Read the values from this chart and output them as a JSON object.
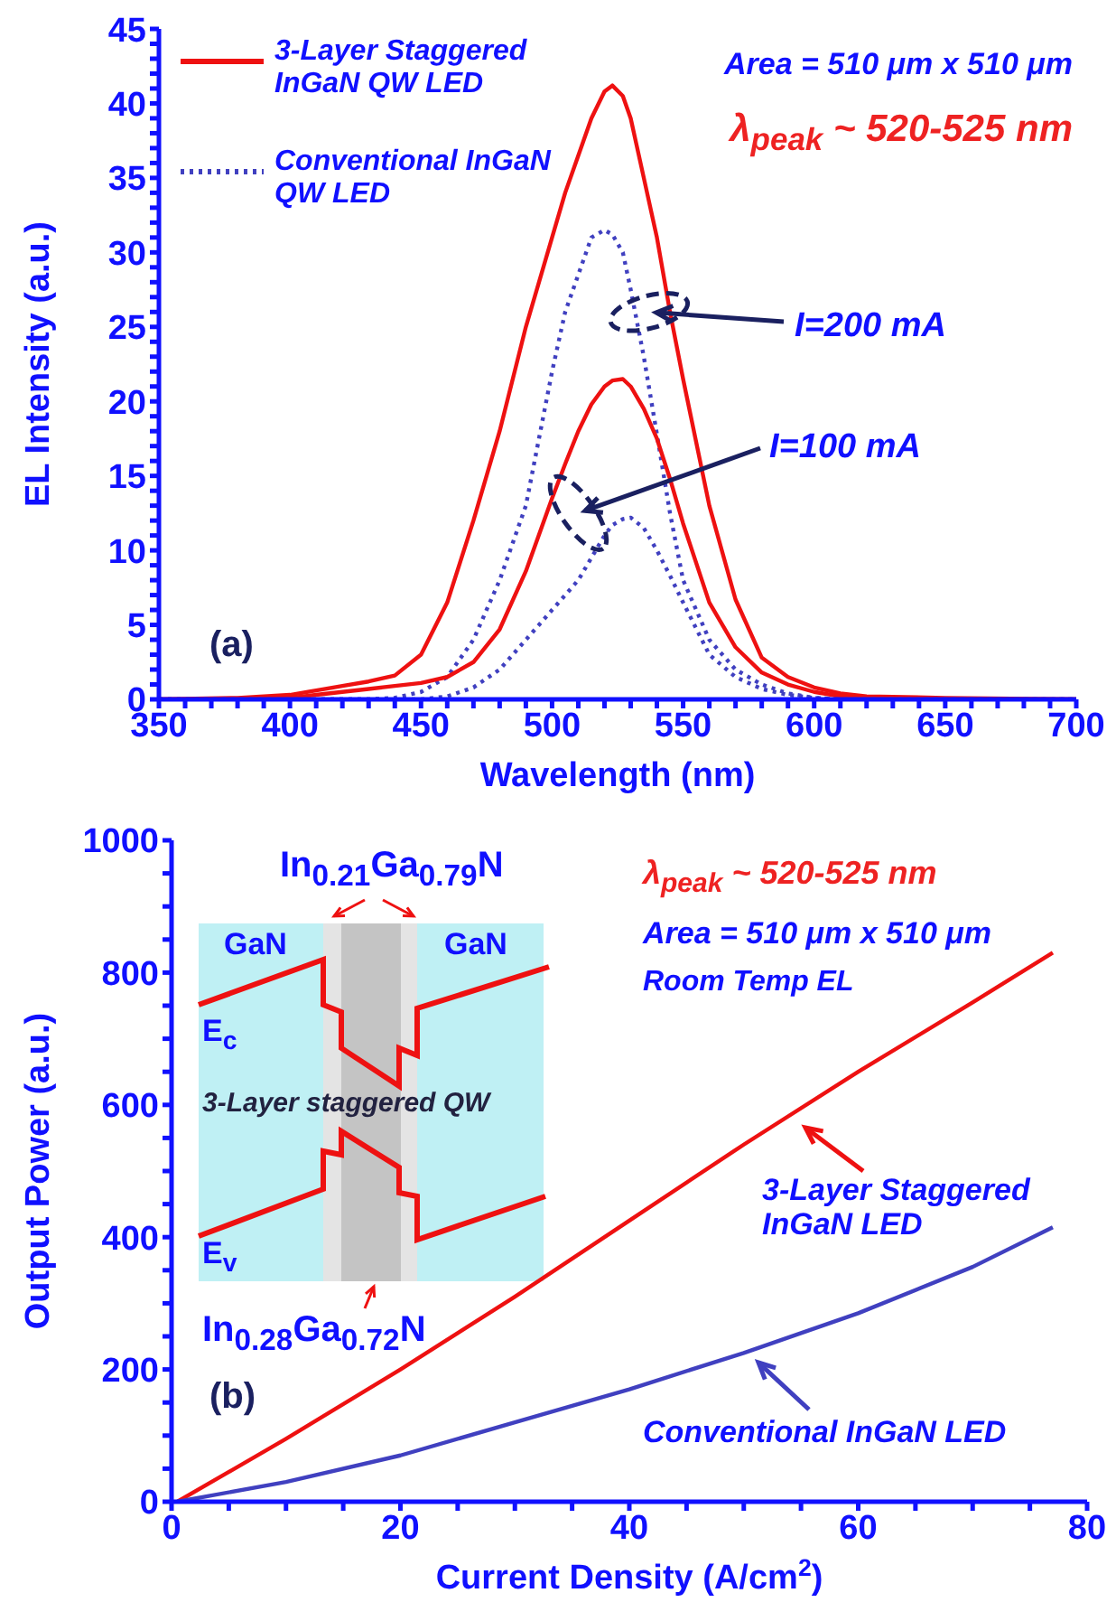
{
  "chart_data": [
    {
      "type": "line",
      "xlabel": "Wavelength (nm)",
      "ylabel": "EL Intensity (a.u.)",
      "xlim": [
        350,
        700
      ],
      "ylim": [
        0,
        45
      ],
      "xticks": [
        350,
        {
          "value": 360,
          "label": null
        },
        {
          "value": 370,
          "label": null
        },
        {
          "value": 380,
          "label": null
        },
        {
          "value": 390,
          "label": null
        },
        400,
        {
          "value": 410,
          "label": null
        },
        {
          "value": 420,
          "label": null
        },
        {
          "value": 430,
          "label": null
        },
        {
          "value": 440,
          "label": null
        },
        450,
        {
          "value": 460,
          "label": null
        },
        {
          "value": 470,
          "label": null
        },
        {
          "value": 480,
          "label": null
        },
        {
          "value": 490,
          "label": null
        },
        500,
        {
          "value": 510,
          "label": null
        },
        {
          "value": 520,
          "label": null
        },
        {
          "value": 530,
          "label": null
        },
        {
          "value": 540,
          "label": null
        },
        550,
        {
          "value": 560,
          "label": null
        },
        {
          "value": 570,
          "label": null
        },
        {
          "value": 580,
          "label": null
        },
        {
          "value": 590,
          "label": null
        },
        600,
        {
          "value": 610,
          "label": null
        },
        {
          "value": 620,
          "label": null
        },
        {
          "value": 630,
          "label": null
        },
        {
          "value": 640,
          "label": null
        },
        650,
        {
          "value": 660,
          "label": null
        },
        {
          "value": 670,
          "label": null
        },
        {
          "value": 680,
          "label": null
        },
        {
          "value": 690,
          "label": null
        },
        700
      ],
      "yticks": [
        0,
        {
          "value": 1,
          "label": null
        },
        {
          "value": 2,
          "label": null
        },
        {
          "value": 3,
          "label": null
        },
        {
          "value": 4,
          "label": null
        },
        5,
        {
          "value": 6,
          "label": null
        },
        {
          "value": 7,
          "label": null
        },
        {
          "value": 8,
          "label": null
        },
        {
          "value": 9,
          "label": null
        },
        10,
        {
          "value": 11,
          "label": null
        },
        {
          "value": 12,
          "label": null
        },
        {
          "value": 13,
          "label": null
        },
        {
          "value": 14,
          "label": null
        },
        15,
        {
          "value": 16,
          "label": null
        },
        {
          "value": 17,
          "label": null
        },
        {
          "value": 18,
          "label": null
        },
        {
          "value": 19,
          "label": null
        },
        20,
        {
          "value": 21,
          "label": null
        },
        {
          "value": 22,
          "label": null
        },
        {
          "value": 23,
          "label": null
        },
        {
          "value": 24,
          "label": null
        },
        25,
        {
          "value": 26,
          "label": null
        },
        {
          "value": 27,
          "label": null
        },
        {
          "value": 28,
          "label": null
        },
        {
          "value": 29,
          "label": null
        },
        30,
        {
          "value": 31,
          "label": null
        },
        {
          "value": 32,
          "label": null
        },
        {
          "value": 33,
          "label": null
        },
        {
          "value": 34,
          "label": null
        },
        35,
        {
          "value": 36,
          "label": null
        },
        {
          "value": 37,
          "label": null
        },
        {
          "value": 38,
          "label": null
        },
        {
          "value": 39,
          "label": null
        },
        40,
        {
          "value": 41,
          "label": null
        },
        {
          "value": 42,
          "label": null
        },
        {
          "value": 43,
          "label": null
        },
        {
          "value": 44,
          "label": null
        },
        45
      ],
      "x": [
        350,
        380,
        400,
        410,
        420,
        430,
        440,
        450,
        460,
        470,
        480,
        490,
        500,
        505,
        510,
        515,
        520,
        523,
        527,
        530,
        535,
        540,
        545,
        550,
        560,
        570,
        580,
        590,
        600,
        610,
        620,
        650,
        700
      ],
      "series": [
        {
          "name": "3-Layer Staggered InGaN QW LED",
          "color": "#ee1111",
          "line_style": "solid",
          "values": [
            0,
            0.1,
            0.3,
            0.6,
            0.9,
            1.2,
            1.6,
            3,
            6.5,
            12,
            18,
            25,
            31,
            34,
            36.5,
            39,
            40.8,
            41.2,
            40.5,
            39,
            35,
            31,
            26,
            21.5,
            13,
            6.7,
            2.8,
            1.5,
            0.8,
            0.4,
            0.2,
            0.1,
            0
          ]
        },
        {
          "name": "Conventional InGaN QW LED",
          "color": "#4040c0",
          "line_style": "dotted",
          "values": [
            0,
            0,
            0,
            0,
            0,
            0,
            0.1,
            0.5,
            1.5,
            4,
            8,
            13,
            22,
            26,
            28.5,
            31,
            31.5,
            31.2,
            30,
            27.5,
            23,
            17.8,
            12.5,
            8,
            4,
            2,
            1,
            0.4,
            0.1,
            0,
            0,
            0,
            0
          ]
        },
        {
          "color": "#ee1111",
          "line_style": "solid",
          "values": [
            0,
            0,
            0.1,
            0.3,
            0.5,
            0.7,
            0.9,
            1.1,
            1.5,
            2.5,
            4.7,
            8.6,
            13.5,
            15.8,
            18,
            19.8,
            21,
            21.4,
            21.5,
            21,
            19.5,
            17.5,
            14.8,
            11.8,
            6.5,
            3.5,
            1.8,
            1,
            0.5,
            0.2,
            0.1,
            0,
            0
          ]
        },
        {
          "color": "#4040c0",
          "line_style": "dotted",
          "values": [
            0,
            0,
            0,
            0,
            0,
            0,
            0,
            0,
            0.2,
            0.8,
            2,
            4,
            6,
            7,
            8,
            9.5,
            11,
            11.7,
            12.1,
            12.2,
            11.5,
            10,
            8.3,
            6.5,
            3,
            1.5,
            0.7,
            0.3,
            0.1,
            0,
            0,
            0,
            0
          ]
        }
      ],
      "legend": "top left",
      "marker": "none",
      "annotations": [
        "Area = 510 μm x 510 μm",
        "λ$_{peak}$ ~ 520-525 nm",
        {
          "text": "I=200 mA",
          "x": 537,
          "y": 26
        },
        {
          "text": "I=100 mA",
          "x": 510,
          "y": 12.5
        },
        "(a)"
      ]
    },
    {
      "type": "line",
      "xlabel": "Current Density (A/cm$^{2}$)",
      "ylabel": "Output Power (a.u.)",
      "xlim": [
        0,
        80
      ],
      "ylim": [
        0,
        1000
      ],
      "xticks": [
        0,
        {
          "value": 5,
          "label": null
        },
        {
          "value": 10,
          "label": null
        },
        {
          "value": 15,
          "label": null
        },
        20,
        {
          "value": 25,
          "label": null
        },
        {
          "value": 30,
          "label": null
        },
        {
          "value": 35,
          "label": null
        },
        40,
        {
          "value": 45,
          "label": null
        },
        {
          "value": 50,
          "label": null
        },
        {
          "value": 55,
          "label": null
        },
        60,
        {
          "value": 65,
          "label": null
        },
        {
          "value": 70,
          "label": null
        },
        {
          "value": 75,
          "label": null
        },
        80
      ],
      "yticks": [
        0,
        {
          "value": 50,
          "label": null
        },
        {
          "value": 100,
          "label": null
        },
        {
          "value": 150,
          "label": null
        },
        200,
        {
          "value": 250,
          "label": null
        },
        {
          "value": 300,
          "label": null
        },
        {
          "value": 350,
          "label": null
        },
        400,
        {
          "value": 450,
          "label": null
        },
        {
          "value": 500,
          "label": null
        },
        {
          "value": 550,
          "label": null
        },
        600,
        {
          "value": 650,
          "label": null
        },
        {
          "value": 700,
          "label": null
        },
        {
          "value": 750,
          "label": null
        },
        800,
        {
          "value": 850,
          "label": null
        },
        {
          "value": 900,
          "label": null
        },
        {
          "value": 950,
          "label": null
        },
        1000
      ],
      "x": [
        0.5,
        10,
        20,
        30,
        40,
        50,
        60,
        70,
        77
      ],
      "series": [
        {
          "name": "3-Layer Staggered InGaN LED",
          "color": "#ee1111",
          "values": [
            0,
            95,
            200,
            310,
            425,
            540,
            650,
            755,
            830
          ]
        },
        {
          "name": "Conventional InGaN LED",
          "color": "#4040c0",
          "values": [
            0,
            30,
            70,
            120,
            170,
            225,
            285,
            355,
            415
          ]
        }
      ],
      "legend": "bottom right",
      "line_style": "solid",
      "marker": "none",
      "annotations": [
        "λ$_{peak}$ ~ 520-525 nm",
        "Area = 510 μm x 510 μm",
        "Room Temp EL",
        "(b)",
        "In$_{0.21}$Ga$_{0.79}$N",
        "GaN",
        "GaN",
        "E$_{c}$",
        "E$_{v}$",
        "3-Layer staggered QW",
        "In$_{0.28}$Ga$_{0.72}$N"
      ]
    }
  ]
}
